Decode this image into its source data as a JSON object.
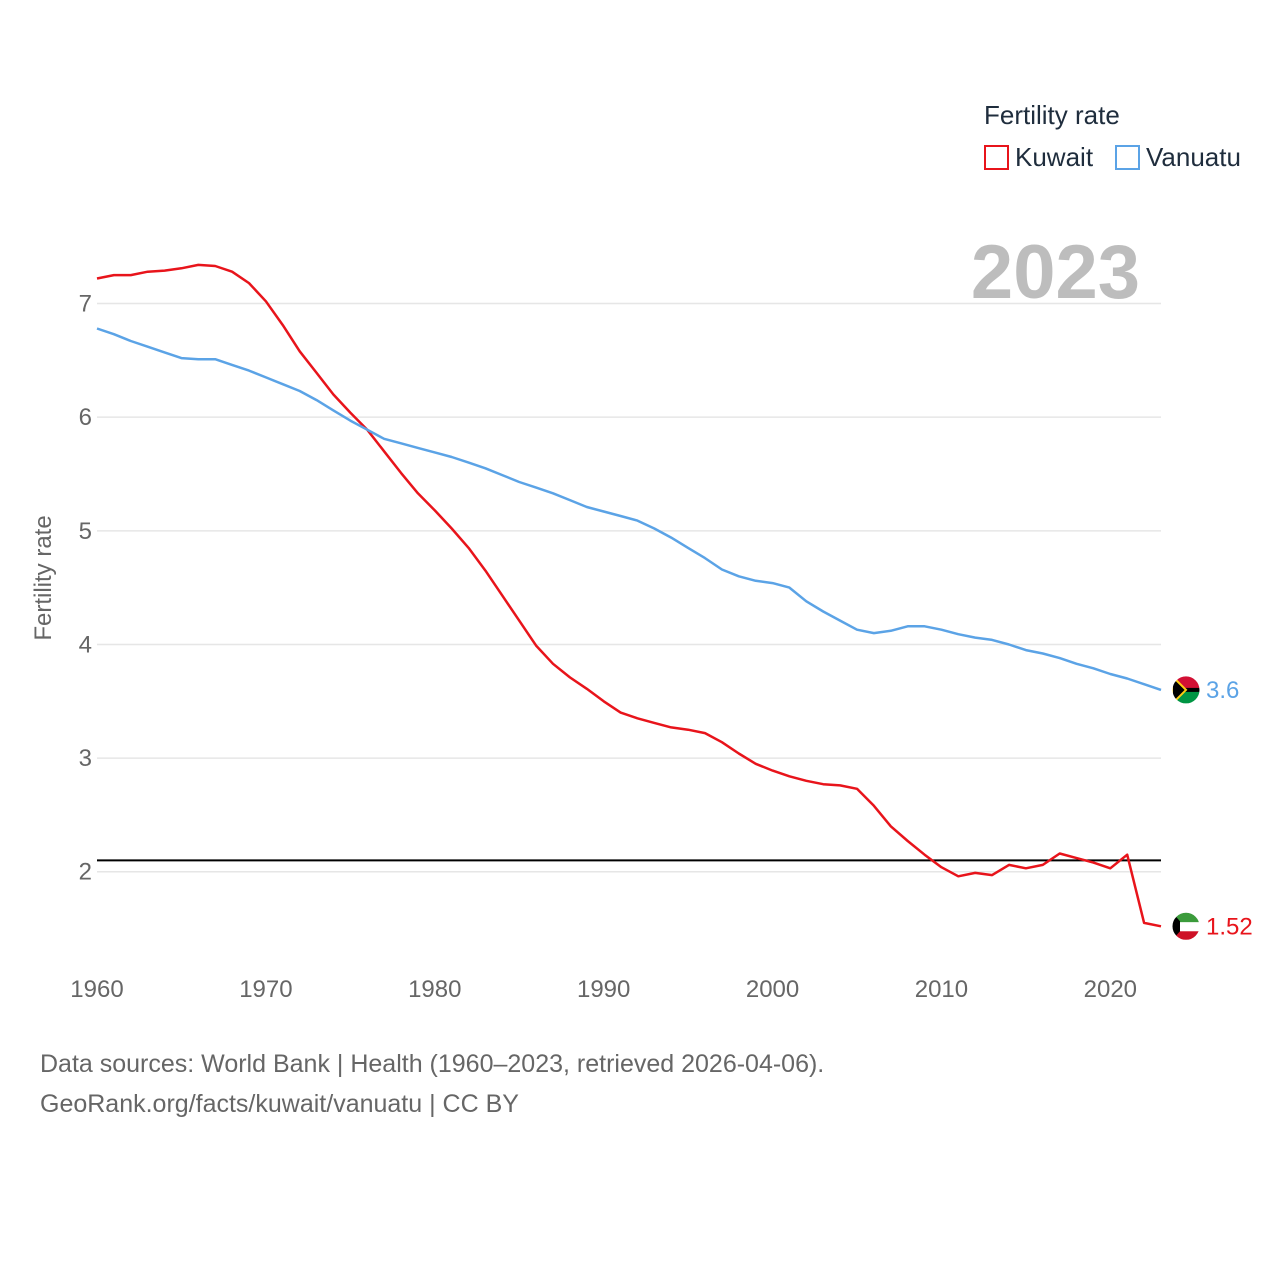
{
  "chart_data": {
    "type": "line",
    "title": "Fertility rate",
    "year_label": "2023",
    "xlabel": "",
    "ylabel": "Fertility rate",
    "xlim": [
      1960,
      2023
    ],
    "ylim": [
      1.1,
      7.7
    ],
    "x_ticks": [
      1960,
      1970,
      1980,
      1990,
      2000,
      2010,
      2020
    ],
    "y_ticks": [
      2,
      3,
      4,
      5,
      6,
      7
    ],
    "grid": true,
    "legend_position": "top-right",
    "reference_line": 2.1,
    "x": [
      1960,
      1961,
      1962,
      1963,
      1964,
      1965,
      1966,
      1967,
      1968,
      1969,
      1970,
      1971,
      1972,
      1973,
      1974,
      1975,
      1976,
      1977,
      1978,
      1979,
      1980,
      1981,
      1982,
      1983,
      1984,
      1985,
      1986,
      1987,
      1988,
      1989,
      1990,
      1991,
      1992,
      1993,
      1994,
      1995,
      1996,
      1997,
      1998,
      1999,
      2000,
      2001,
      2002,
      2003,
      2004,
      2005,
      2006,
      2007,
      2008,
      2009,
      2010,
      2011,
      2012,
      2013,
      2014,
      2015,
      2016,
      2017,
      2018,
      2019,
      2020,
      2021,
      2022,
      2023
    ],
    "series": [
      {
        "name": "Kuwait",
        "color": "#e8141b",
        "end_label": "1.52",
        "values": [
          7.22,
          7.25,
          7.25,
          7.28,
          7.29,
          7.31,
          7.34,
          7.33,
          7.28,
          7.18,
          7.02,
          6.81,
          6.58,
          6.39,
          6.2,
          6.04,
          5.89,
          5.7,
          5.51,
          5.33,
          5.18,
          5.02,
          4.85,
          4.65,
          4.43,
          4.21,
          3.99,
          3.83,
          3.71,
          3.61,
          3.5,
          3.4,
          3.35,
          3.31,
          3.27,
          3.25,
          3.22,
          3.14,
          3.04,
          2.95,
          2.89,
          2.84,
          2.8,
          2.77,
          2.76,
          2.73,
          2.58,
          2.4,
          2.27,
          2.15,
          2.04,
          1.96,
          1.99,
          1.97,
          2.06,
          2.03,
          2.06,
          2.16,
          2.12,
          2.08,
          2.03,
          2.15,
          1.55,
          1.52
        ]
      },
      {
        "name": "Vanuatu",
        "color": "#5ba3e6",
        "end_label": "3.6",
        "values": [
          6.78,
          6.73,
          6.67,
          6.62,
          6.57,
          6.52,
          6.51,
          6.51,
          6.46,
          6.41,
          6.35,
          6.29,
          6.23,
          6.15,
          6.06,
          5.97,
          5.89,
          5.81,
          5.77,
          5.73,
          5.69,
          5.65,
          5.6,
          5.55,
          5.49,
          5.43,
          5.38,
          5.33,
          5.27,
          5.21,
          5.17,
          5.13,
          5.09,
          5.02,
          4.94,
          4.85,
          4.76,
          4.66,
          4.6,
          4.56,
          4.54,
          4.5,
          4.38,
          4.29,
          4.21,
          4.13,
          4.1,
          4.12,
          4.16,
          4.16,
          4.13,
          4.09,
          4.06,
          4.04,
          4.0,
          3.95,
          3.92,
          3.88,
          3.83,
          3.79,
          3.74,
          3.7,
          3.65,
          3.6
        ]
      }
    ]
  },
  "footer": {
    "line1": "Data sources: World Bank | Health (1960–2023, retrieved 2026-04-06).",
    "line2": "GeoRank.org/facts/kuwait/vanuatu | CC BY"
  }
}
